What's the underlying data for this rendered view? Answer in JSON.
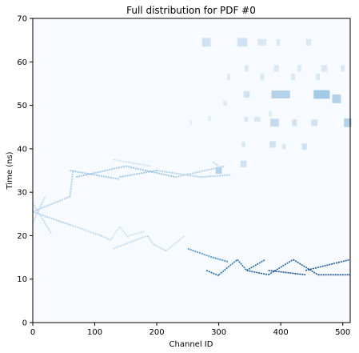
{
  "chart_data": {
    "type": "heatmap",
    "title": "Full distribution for PDF #0",
    "xlabel": "Channel ID",
    "ylabel": "Time (ns)",
    "xlim": [
      0,
      512
    ],
    "ylim": [
      0,
      70
    ],
    "x_ticks": [
      0,
      100,
      200,
      300,
      400,
      500
    ],
    "y_ticks": [
      0,
      10,
      20,
      30,
      40,
      50,
      60,
      70
    ],
    "grid": false,
    "background_color": "#f7fbff",
    "colormap": [
      "#f7fbff",
      "#c6dbef",
      "#6baed6",
      "#2171b5",
      "#08306b"
    ],
    "segments": [
      {
        "x0": 0,
        "y0": 25.5,
        "x1": 60,
        "y1": 29,
        "intensity": 0.3
      },
      {
        "x0": 0,
        "y0": 25.5,
        "x1": 60,
        "y1": 22.5,
        "intensity": 0.3
      },
      {
        "x0": 0,
        "y0": 27.5,
        "x1": 30,
        "y1": 20.5,
        "intensity": 0.25
      },
      {
        "x0": 0,
        "y0": 23,
        "x1": 20,
        "y1": 29,
        "intensity": 0.25
      },
      {
        "x0": 60,
        "y0": 29,
        "x1": 65,
        "y1": 35,
        "intensity": 0.3
      },
      {
        "x0": 60,
        "y0": 22.5,
        "x1": 110,
        "y1": 20,
        "intensity": 0.25
      },
      {
        "x0": 110,
        "y0": 20,
        "x1": 125,
        "y1": 19,
        "intensity": 0.25
      },
      {
        "x0": 125,
        "y0": 19,
        "x1": 140,
        "y1": 22,
        "intensity": 0.2
      },
      {
        "x0": 140,
        "y0": 22,
        "x1": 155,
        "y1": 19.5,
        "intensity": 0.2
      },
      {
        "x0": 155,
        "y0": 20,
        "x1": 180,
        "y1": 21,
        "intensity": 0.2
      },
      {
        "x0": 130,
        "y0": 17,
        "x1": 185,
        "y1": 20,
        "intensity": 0.25
      },
      {
        "x0": 185,
        "y0": 20,
        "x1": 195,
        "y1": 18,
        "intensity": 0.25
      },
      {
        "x0": 195,
        "y0": 18,
        "x1": 215,
        "y1": 16.5,
        "intensity": 0.25
      },
      {
        "x0": 215,
        "y0": 16.5,
        "x1": 245,
        "y1": 20,
        "intensity": 0.2
      },
      {
        "x0": 250,
        "y0": 17,
        "x1": 290,
        "y1": 15,
        "intensity": 0.55
      },
      {
        "x0": 290,
        "y0": 15,
        "x1": 315,
        "y1": 14,
        "intensity": 0.6
      },
      {
        "x0": 280,
        "y0": 12,
        "x1": 300,
        "y1": 10.8,
        "intensity": 0.8
      },
      {
        "x0": 300,
        "y0": 11,
        "x1": 330,
        "y1": 14.5,
        "intensity": 0.75
      },
      {
        "x0": 330,
        "y0": 14.5,
        "x1": 345,
        "y1": 12,
        "intensity": 0.75
      },
      {
        "x0": 345,
        "y0": 12,
        "x1": 375,
        "y1": 14.5,
        "intensity": 0.8
      },
      {
        "x0": 345,
        "y0": 12,
        "x1": 380,
        "y1": 11,
        "intensity": 0.85
      },
      {
        "x0": 380,
        "y0": 11,
        "x1": 420,
        "y1": 14.5,
        "intensity": 0.8
      },
      {
        "x0": 380,
        "y0": 12,
        "x1": 440,
        "y1": 11,
        "intensity": 0.9
      },
      {
        "x0": 420,
        "y0": 14.5,
        "x1": 460,
        "y1": 11,
        "intensity": 0.85
      },
      {
        "x0": 440,
        "y0": 12,
        "x1": 512,
        "y1": 14.5,
        "intensity": 0.85
      },
      {
        "x0": 460,
        "y0": 11,
        "x1": 512,
        "y1": 11,
        "intensity": 0.9
      },
      {
        "x0": 60,
        "y0": 35,
        "x1": 140,
        "y1": 33,
        "intensity": 0.35
      },
      {
        "x0": 70,
        "y0": 33.5,
        "x1": 150,
        "y1": 36,
        "intensity": 0.35
      },
      {
        "x0": 140,
        "y0": 33.5,
        "x1": 200,
        "y1": 35,
        "intensity": 0.35
      },
      {
        "x0": 150,
        "y0": 36,
        "x1": 230,
        "y1": 33.5,
        "intensity": 0.35
      },
      {
        "x0": 200,
        "y0": 35,
        "x1": 270,
        "y1": 33.5,
        "intensity": 0.3
      },
      {
        "x0": 230,
        "y0": 33.5,
        "x1": 310,
        "y1": 36,
        "intensity": 0.3
      },
      {
        "x0": 270,
        "y0": 33.5,
        "x1": 320,
        "y1": 34,
        "intensity": 0.3
      },
      {
        "x0": 130,
        "y0": 37.5,
        "x1": 190,
        "y1": 36,
        "intensity": 0.2
      },
      {
        "x0": 290,
        "y0": 37,
        "x1": 300,
        "y1": 36,
        "intensity": 0.25
      }
    ],
    "blobs": [
      {
        "x": 280,
        "y": 64.5,
        "w": 14,
        "h": 2,
        "intensity": 0.2
      },
      {
        "x": 338,
        "y": 64.5,
        "w": 16,
        "h": 2,
        "intensity": 0.2
      },
      {
        "x": 370,
        "y": 64.5,
        "w": 14,
        "h": 1.5,
        "intensity": 0.15
      },
      {
        "x": 396,
        "y": 64.5,
        "w": 6,
        "h": 1.5,
        "intensity": 0.15
      },
      {
        "x": 445,
        "y": 64.5,
        "w": 8,
        "h": 1.5,
        "intensity": 0.15
      },
      {
        "x": 345,
        "y": 58.5,
        "w": 6,
        "h": 1.5,
        "intensity": 0.15
      },
      {
        "x": 393,
        "y": 58.5,
        "w": 8,
        "h": 1.5,
        "intensity": 0.15
      },
      {
        "x": 430,
        "y": 58.5,
        "w": 6,
        "h": 1.5,
        "intensity": 0.15
      },
      {
        "x": 470,
        "y": 58.5,
        "w": 10,
        "h": 1.5,
        "intensity": 0.15
      },
      {
        "x": 500,
        "y": 58.5,
        "w": 6,
        "h": 1.5,
        "intensity": 0.15
      },
      {
        "x": 316,
        "y": 56.5,
        "w": 4,
        "h": 1.5,
        "intensity": 0.15
      },
      {
        "x": 370,
        "y": 56.5,
        "w": 6,
        "h": 1.5,
        "intensity": 0.15
      },
      {
        "x": 420,
        "y": 56.5,
        "w": 6,
        "h": 1.5,
        "intensity": 0.15
      },
      {
        "x": 460,
        "y": 56.5,
        "w": 6,
        "h": 1.5,
        "intensity": 0.15
      },
      {
        "x": 345,
        "y": 52.5,
        "w": 10,
        "h": 1.5,
        "intensity": 0.2
      },
      {
        "x": 400,
        "y": 52.5,
        "w": 30,
        "h": 1.8,
        "intensity": 0.3
      },
      {
        "x": 466,
        "y": 52.5,
        "w": 26,
        "h": 2,
        "intensity": 0.35
      },
      {
        "x": 490,
        "y": 51.5,
        "w": 14,
        "h": 2,
        "intensity": 0.3
      },
      {
        "x": 310,
        "y": 50.5,
        "w": 6,
        "h": 1.2,
        "intensity": 0.12
      },
      {
        "x": 383,
        "y": 48,
        "w": 6,
        "h": 1.2,
        "intensity": 0.12
      },
      {
        "x": 344,
        "y": 46.8,
        "w": 6,
        "h": 1.2,
        "intensity": 0.15
      },
      {
        "x": 362,
        "y": 46.8,
        "w": 10,
        "h": 1.2,
        "intensity": 0.15
      },
      {
        "x": 390,
        "y": 46,
        "w": 14,
        "h": 1.8,
        "intensity": 0.25
      },
      {
        "x": 422,
        "y": 46,
        "w": 8,
        "h": 1.5,
        "intensity": 0.2
      },
      {
        "x": 454,
        "y": 46,
        "w": 10,
        "h": 1.5,
        "intensity": 0.2
      },
      {
        "x": 508,
        "y": 46,
        "w": 12,
        "h": 2,
        "intensity": 0.3
      },
      {
        "x": 285,
        "y": 47,
        "w": 4,
        "h": 1.2,
        "intensity": 0.12
      },
      {
        "x": 255,
        "y": 46,
        "w": 4,
        "h": 1.2,
        "intensity": 0.1
      },
      {
        "x": 340,
        "y": 41,
        "w": 6,
        "h": 1.2,
        "intensity": 0.15
      },
      {
        "x": 387,
        "y": 41,
        "w": 10,
        "h": 1.5,
        "intensity": 0.2
      },
      {
        "x": 405,
        "y": 40.5,
        "w": 6,
        "h": 1.2,
        "intensity": 0.15
      },
      {
        "x": 438,
        "y": 40.5,
        "w": 8,
        "h": 1.5,
        "intensity": 0.2
      },
      {
        "x": 340,
        "y": 36.5,
        "w": 10,
        "h": 1.5,
        "intensity": 0.2
      },
      {
        "x": 300,
        "y": 35,
        "w": 10,
        "h": 1.5,
        "intensity": 0.3
      }
    ]
  }
}
